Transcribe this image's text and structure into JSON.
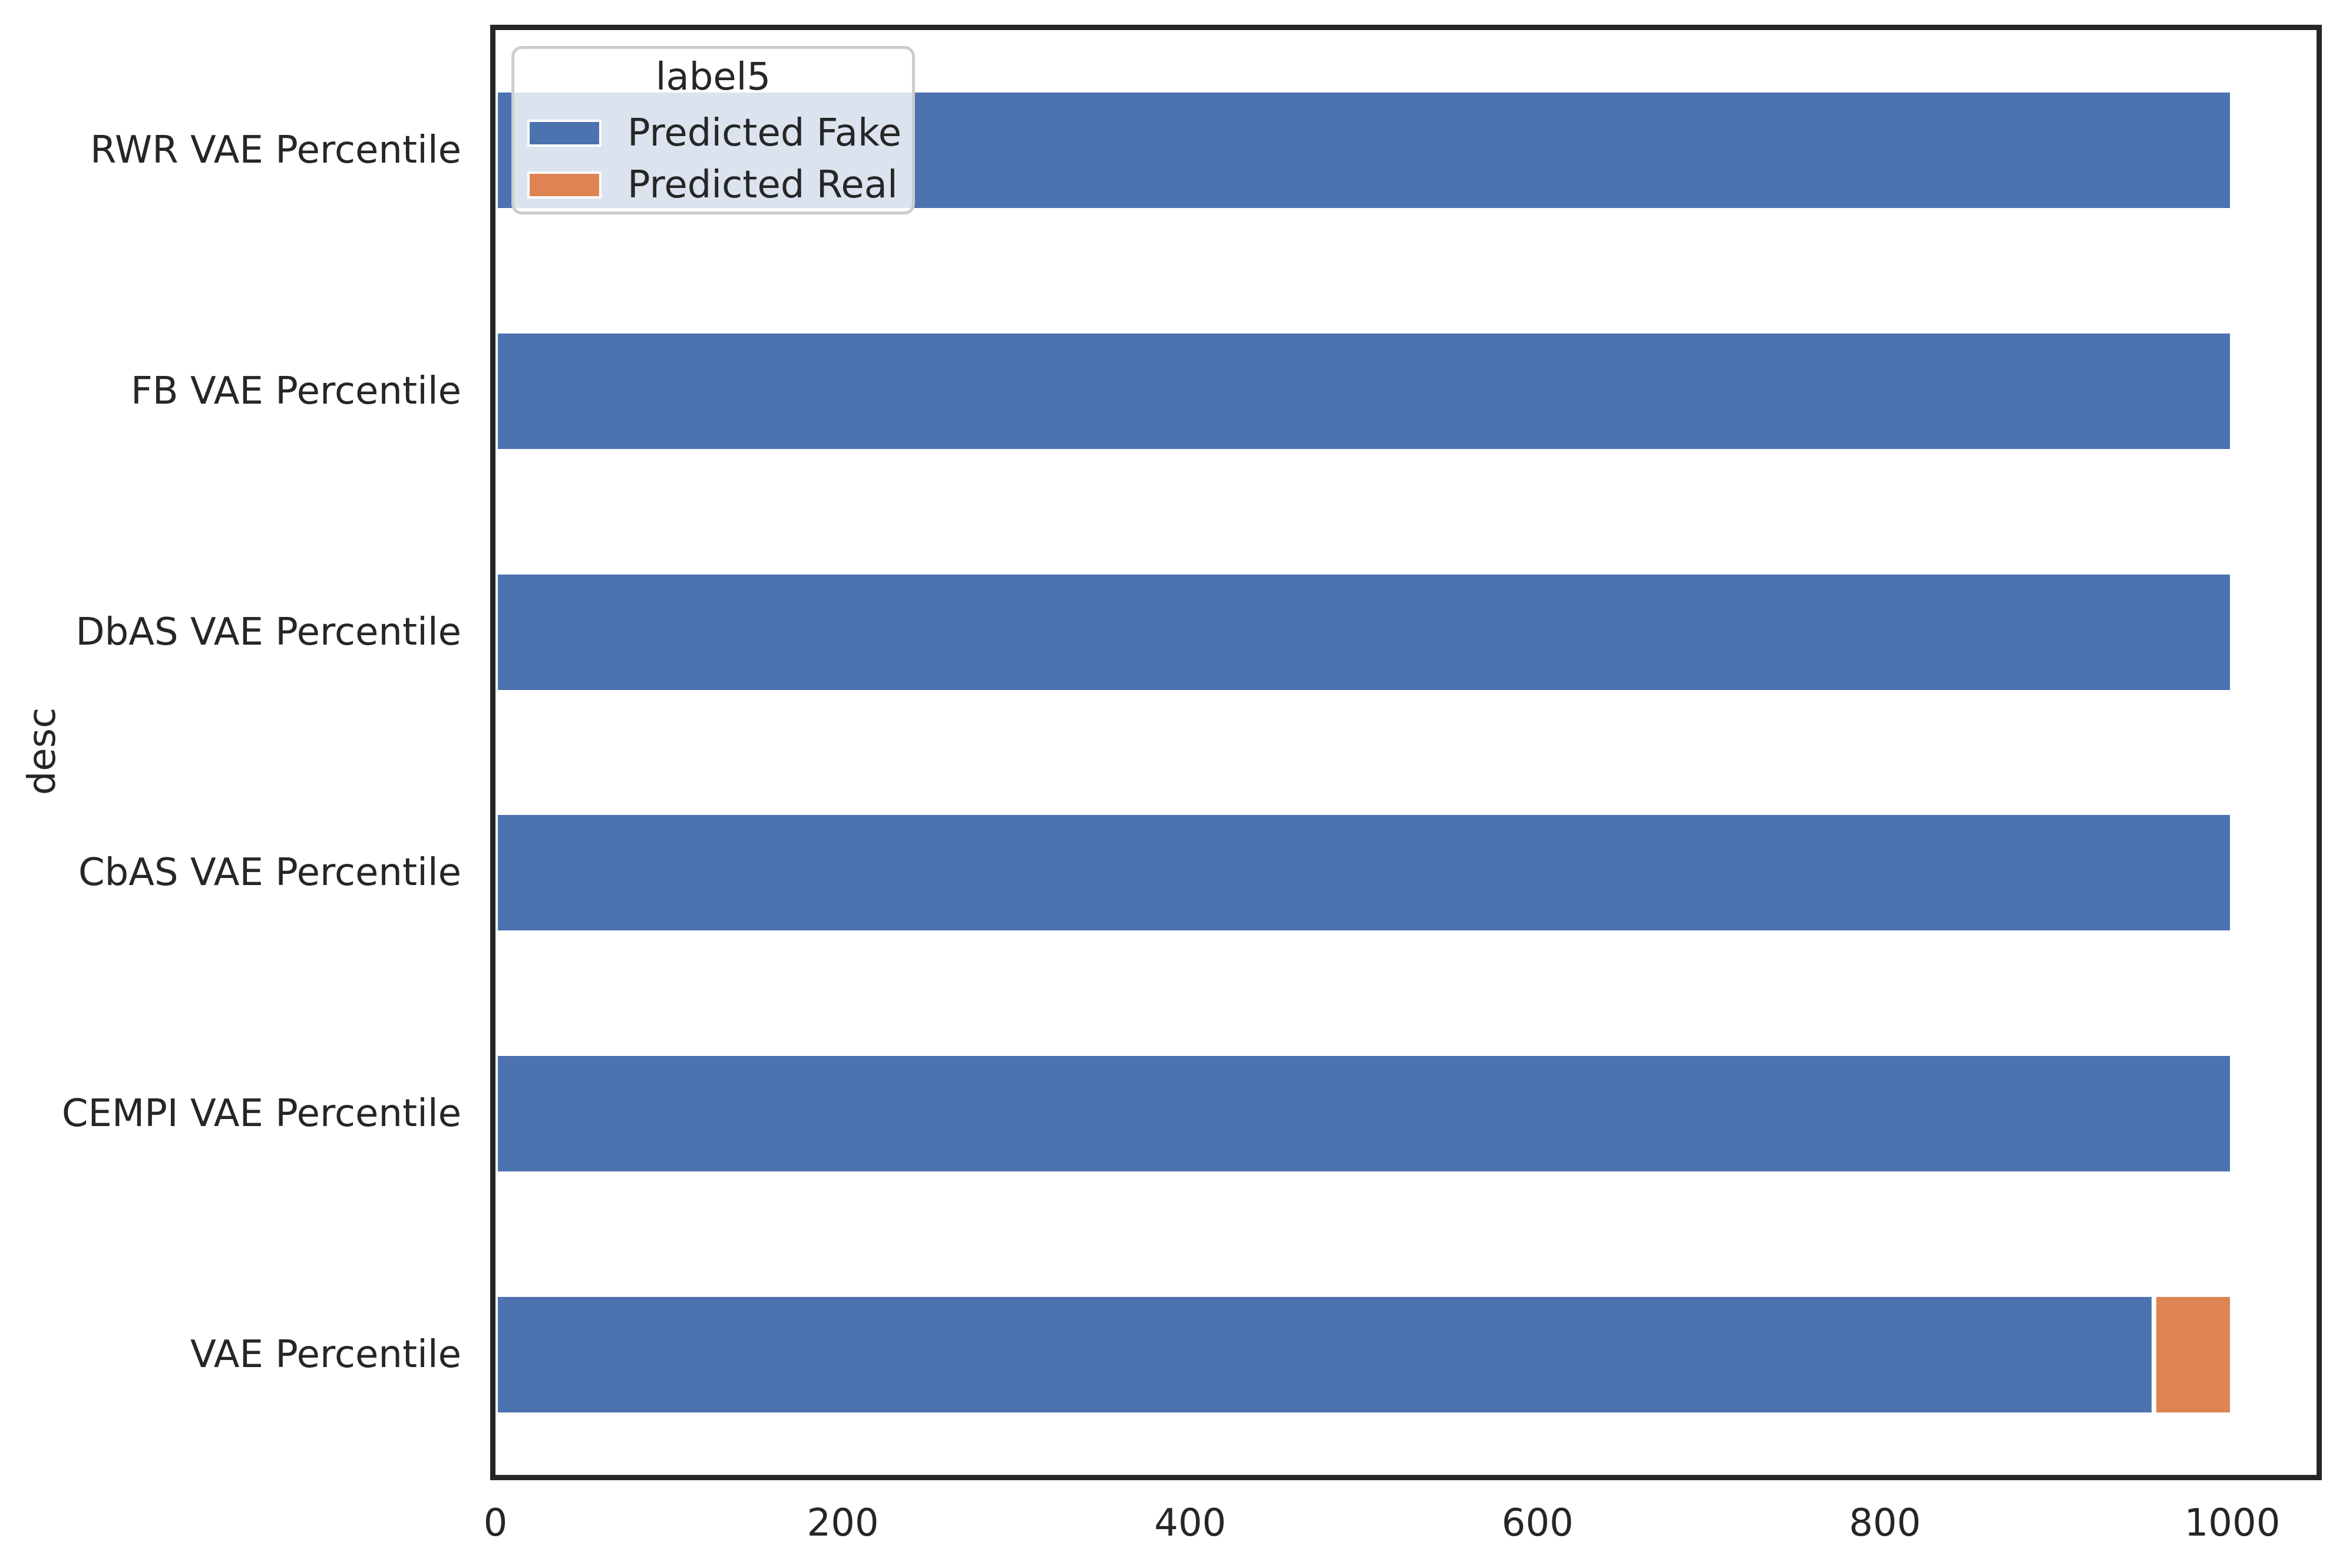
{
  "figure": {
    "background": "#ffffff",
    "axes": {
      "ylabel": "desc",
      "xlabel": "",
      "spine_color": "#262626",
      "text_color": "#262626"
    },
    "legend": {
      "title": "label5",
      "items": [
        {
          "label": "Predicted Fake",
          "color": "#4C72B0"
        },
        {
          "label": "Predicted Real",
          "color": "#DD8452"
        }
      ]
    }
  },
  "chart_data": {
    "type": "bar",
    "orientation": "horizontal",
    "stacked": true,
    "title": "",
    "xlabel": "",
    "ylabel": "desc",
    "categories": [
      "RWR VAE Percentile",
      "FB VAE Percentile",
      "DbAS VAE Percentile",
      "CbAS VAE Percentile",
      "CEMPI VAE Percentile",
      "VAE Percentile"
    ],
    "series": [
      {
        "name": "Predicted Fake",
        "color": "#4C72B0",
        "values": [
          1000,
          1000,
          1000,
          1000,
          1000,
          955
        ]
      },
      {
        "name": "Predicted Real",
        "color": "#DD8452",
        "values": [
          0,
          0,
          0,
          0,
          0,
          45
        ]
      }
    ],
    "xticks": [
      0,
      200,
      400,
      600,
      800,
      1000
    ],
    "xlim": [
      0,
      1048
    ],
    "grid": false,
    "legend_title": "label5",
    "legend_position": "upper-left"
  }
}
